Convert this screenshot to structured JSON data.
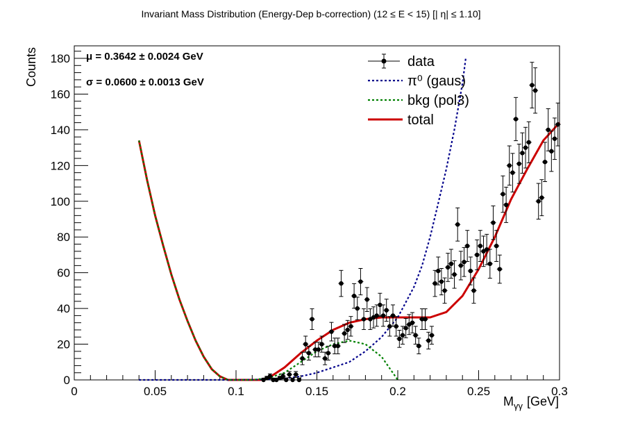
{
  "chart_data": {
    "type": "scatter",
    "title": "Invariant Mass Distribution (Energy-Dep b-correction)   (12      ≤ E < 15)   [| η| ≤ 1.10]",
    "xlabel": "M_γγ  [GeV]",
    "xlabel_main": "M",
    "xlabel_sub": "γγ",
    "xlabel_unit": "[GeV]",
    "ylabel": "Counts",
    "xlim": [
      0,
      0.3
    ],
    "ylim": [
      0,
      187
    ],
    "x_ticks": [
      0,
      0.05,
      0.1,
      0.15,
      0.2,
      0.25,
      0.3
    ],
    "x_tick_labels": [
      "0",
      "0.05",
      "0.1",
      "0.15",
      "0.2",
      "0.25",
      "0.3"
    ],
    "y_ticks": [
      0,
      20,
      40,
      60,
      80,
      100,
      120,
      140,
      160,
      180
    ],
    "y_tick_labels": [
      "0",
      "20",
      "40",
      "60",
      "80",
      "100",
      "120",
      "140",
      "160",
      "180"
    ],
    "grid": false,
    "legend_position": "top-right",
    "fit_params": {
      "mu_label": "μ = 0.3642  ± 0.0024 GeV",
      "sigma_label": "σ = 0.0600  ± 0.0013 GeV"
    },
    "legend": [
      {
        "key": "data",
        "label": "data",
        "style": "marker",
        "color": "#000000"
      },
      {
        "key": "gaus",
        "label": "π⁰ (gaus)",
        "style": "dotted",
        "color": "#00008b"
      },
      {
        "key": "bkg",
        "label": "bkg (pol3)",
        "style": "dotted",
        "color": "#008000"
      },
      {
        "key": "total",
        "label": "total",
        "style": "solid",
        "color": "#cc0000"
      }
    ],
    "data_points": {
      "x": [
        0.117,
        0.119,
        0.121,
        0.123,
        0.125,
        0.127,
        0.129,
        0.131,
        0.133,
        0.135,
        0.137,
        0.139,
        0.141,
        0.143,
        0.145,
        0.147,
        0.149,
        0.151,
        0.153,
        0.155,
        0.157,
        0.159,
        0.161,
        0.163,
        0.165,
        0.167,
        0.169,
        0.171,
        0.173,
        0.175,
        0.177,
        0.179,
        0.181,
        0.183,
        0.185,
        0.187,
        0.189,
        0.191,
        0.193,
        0.195,
        0.197,
        0.199,
        0.201,
        0.203,
        0.205,
        0.207,
        0.209,
        0.211,
        0.213,
        0.215,
        0.217,
        0.219,
        0.221,
        0.223,
        0.225,
        0.227,
        0.229,
        0.231,
        0.233,
        0.235,
        0.237,
        0.239,
        0.241,
        0.243,
        0.245,
        0.247,
        0.249,
        0.251,
        0.253,
        0.255,
        0.257,
        0.259,
        0.261,
        0.263,
        0.265,
        0.267,
        0.269,
        0.271,
        0.273,
        0.275,
        0.277,
        0.279,
        0.281,
        0.283,
        0.285,
        0.287,
        0.289,
        0.291,
        0.293,
        0.295,
        0.297,
        0.299
      ],
      "y": [
        0,
        1,
        2,
        0,
        0,
        1,
        2,
        0,
        3,
        0,
        3,
        0,
        12,
        20,
        15,
        34,
        17,
        17,
        20,
        12,
        15,
        27,
        19,
        19,
        54,
        26,
        28,
        30,
        47,
        40,
        55,
        34,
        45,
        34,
        35,
        36,
        42,
        36,
        39,
        30,
        36,
        30,
        23,
        25,
        29,
        31,
        32,
        25,
        19,
        34,
        34,
        22,
        25,
        54,
        61,
        55,
        50,
        63,
        65,
        59,
        87,
        64,
        66,
        75,
        61,
        50,
        70,
        75,
        72,
        73,
        65,
        88,
        75,
        62,
        104,
        98,
        120,
        116,
        146,
        121,
        127,
        130,
        133,
        165,
        162,
        100,
        102,
        122,
        140,
        128,
        135,
        143
      ],
      "err": [
        1,
        1,
        1.4,
        1,
        1,
        1,
        1.4,
        1,
        1.7,
        1,
        1.7,
        1,
        3.5,
        4.5,
        3.9,
        5.8,
        4.1,
        4.1,
        4.5,
        3.5,
        3.9,
        5.2,
        4.4,
        4.4,
        7.3,
        5.1,
        5.3,
        5.5,
        6.9,
        6.3,
        7.4,
        5.8,
        6.7,
        5.8,
        5.9,
        6,
        6.5,
        6,
        6.2,
        5.5,
        6,
        5.5,
        4.8,
        5,
        5.4,
        5.6,
        5.7,
        5,
        4.4,
        5.8,
        5.8,
        4.7,
        5,
        7.3,
        7.8,
        7.4,
        7.1,
        7.9,
        8.1,
        7.7,
        9.3,
        8,
        8.1,
        8.7,
        7.8,
        7.1,
        8.4,
        8.7,
        8.5,
        8.5,
        8.1,
        9.4,
        8.7,
        7.9,
        10.2,
        9.9,
        11,
        10.8,
        12.1,
        11,
        11.3,
        11.4,
        11.5,
        12.8,
        12.7,
        10,
        10.1,
        11,
        11.8,
        11.3,
        11.6,
        12
      ]
    },
    "series": [
      {
        "name": "π⁰ (gaus)",
        "x": [
          0.04,
          0.06,
          0.08,
          0.1,
          0.11,
          0.12,
          0.13,
          0.14,
          0.15,
          0.16,
          0.17,
          0.18,
          0.19,
          0.2,
          0.21,
          0.215,
          0.22,
          0.225,
          0.23,
          0.235,
          0.24,
          0.242
        ],
        "y": [
          0,
          0,
          0,
          0,
          0.1,
          0.3,
          0.8,
          2,
          4,
          7,
          10,
          16,
          24,
          35,
          52,
          64,
          80,
          99,
          118,
          140,
          166,
          180
        ]
      },
      {
        "name": "bkg (pol3)",
        "x": [
          0.04,
          0.045,
          0.05,
          0.055,
          0.06,
          0.065,
          0.07,
          0.075,
          0.08,
          0.085,
          0.09,
          0.095,
          0.1,
          0.11,
          0.12,
          0.13,
          0.14,
          0.15,
          0.16,
          0.17,
          0.18,
          0.19,
          0.2
        ],
        "y": [
          134,
          112,
          92,
          75,
          59,
          45,
          33,
          22,
          13,
          6,
          2,
          0,
          0,
          0,
          1,
          4,
          10,
          16,
          20,
          22,
          20,
          13,
          0
        ]
      },
      {
        "name": "total",
        "x": [
          0.04,
          0.045,
          0.05,
          0.055,
          0.06,
          0.065,
          0.07,
          0.075,
          0.08,
          0.085,
          0.09,
          0.095,
          0.1,
          0.11,
          0.115,
          0.12,
          0.13,
          0.14,
          0.15,
          0.16,
          0.17,
          0.18,
          0.19,
          0.2,
          0.21,
          0.22,
          0.23,
          0.24,
          0.25,
          0.26,
          0.27,
          0.28,
          0.29,
          0.3
        ],
        "y": [
          134,
          112,
          92,
          75,
          59,
          45,
          33,
          22,
          13,
          6,
          2,
          0,
          0,
          0,
          0,
          1,
          7,
          15,
          22,
          28,
          32,
          34,
          35,
          35,
          35,
          35,
          38,
          47,
          62,
          80,
          101,
          118,
          134,
          144
        ]
      }
    ]
  }
}
